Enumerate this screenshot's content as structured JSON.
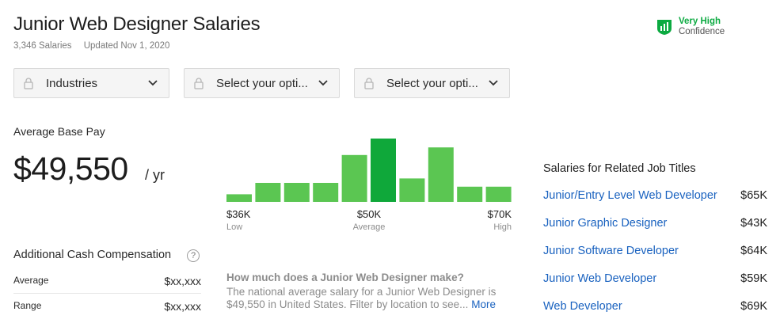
{
  "header": {
    "title": "Junior Web Designer Salaries",
    "salaries_count": "3,346 Salaries",
    "updated": "Updated Nov 1, 2020"
  },
  "confidence": {
    "line1": "Very High",
    "line2": "Confidence",
    "color": "#0caa41"
  },
  "filters": [
    {
      "label": "Industries",
      "icon": "lock-icon"
    },
    {
      "label": "Select your opti...",
      "icon": "lock-icon"
    },
    {
      "label": "Select your opti...",
      "icon": "lock-icon"
    }
  ],
  "average_base_pay": {
    "label": "Average Base Pay",
    "value": "$49,550",
    "unit": "/ yr"
  },
  "chart_data": {
    "type": "bar",
    "categories": [
      "1",
      "2",
      "3",
      "4",
      "5",
      "6",
      "7",
      "8",
      "9",
      "10"
    ],
    "values": [
      0.12,
      0.3,
      0.3,
      0.3,
      0.74,
      1.0,
      0.37,
      0.86,
      0.24,
      0.24
    ],
    "highlight_index": 5,
    "colors": {
      "bar": "#5bc652",
      "highlight": "#0fa83a"
    },
    "ticks": [
      {
        "value": "$36K",
        "label": "Low"
      },
      {
        "value": "$50K",
        "label": "Average"
      },
      {
        "value": "$70K",
        "label": "High"
      }
    ]
  },
  "additional_cash": {
    "title": "Additional Cash Compensation",
    "rows": [
      {
        "label": "Average",
        "value": "$xx,xxx"
      },
      {
        "label": "Range",
        "value": "$xx,xxx"
      }
    ]
  },
  "faq": {
    "question": "How much does a Junior Web Designer make?",
    "answer": "The national average salary for a Junior Web Designer is $49,550 in United States. Filter by location to see...",
    "more": "More"
  },
  "related": {
    "title": "Salaries for Related Job Titles",
    "items": [
      {
        "title": "Junior/Entry Level Web Developer",
        "pay": "$65K"
      },
      {
        "title": "Junior Graphic Designer",
        "pay": "$43K"
      },
      {
        "title": "Junior Software Developer",
        "pay": "$64K"
      },
      {
        "title": "Junior Web Developer",
        "pay": "$59K"
      },
      {
        "title": "Web Developer",
        "pay": "$69K"
      }
    ]
  }
}
